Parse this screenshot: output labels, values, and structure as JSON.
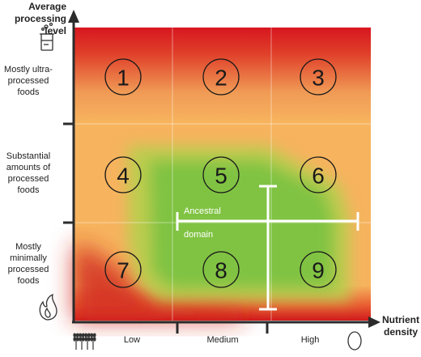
{
  "y_axis": {
    "title": "Average processing level"
  },
  "x_axis": {
    "title": "Nutrient density"
  },
  "rows": [
    {
      "id": "top",
      "label": "Mostly ultra-processed foods"
    },
    {
      "id": "middle",
      "label": "Substantial amounts of processed foods"
    },
    {
      "id": "bottom",
      "label": "Mostly minimally processed foods"
    }
  ],
  "columns": [
    {
      "label": "Low"
    },
    {
      "label": "Medium"
    },
    {
      "label": "High"
    }
  ],
  "cells": [
    "1",
    "2",
    "3",
    "4",
    "5",
    "6",
    "7",
    "8",
    "9"
  ],
  "ancestral_domain": {
    "line1": "Ancestral",
    "line2": "domain"
  },
  "icons": {
    "y_top": "lab-beaker-icon",
    "y_bottom": "flame-icon",
    "x_left": "wheat-icon",
    "x_right": "egg-icon"
  },
  "colors": {
    "red": "#d7161f",
    "orange": "#f7b35e",
    "green": "#7dc242",
    "axis": "#2b2b2b"
  }
}
